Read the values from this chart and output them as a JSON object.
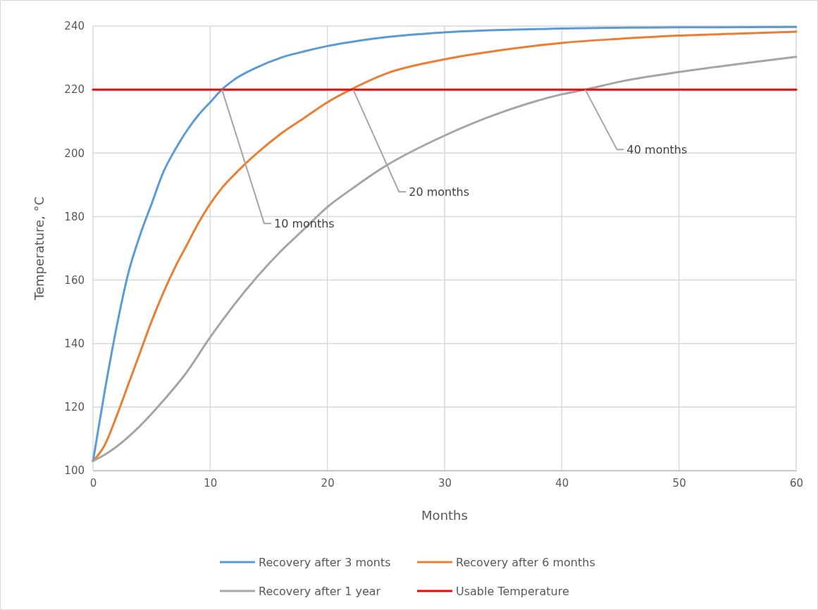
{
  "chart_data": {
    "type": "line",
    "xlabel": "Months",
    "ylabel": "Temperature, °C",
    "xlim": [
      0,
      60
    ],
    "xticks": [
      0,
      10,
      20,
      30,
      40,
      50,
      60
    ],
    "ylim": [
      100,
      240
    ],
    "yticks": [
      100,
      120,
      140,
      160,
      180,
      200,
      220,
      240
    ],
    "grid": true,
    "legend": "bottom",
    "line_style": "solid",
    "marker": "none",
    "series": [
      {
        "name": "Recovery after 3 monts",
        "color": "#5b9bd5",
        "x": [
          0,
          1,
          2,
          3,
          4,
          5,
          6,
          7,
          8,
          9,
          10,
          11,
          12,
          14,
          16,
          18,
          20,
          25,
          30,
          40,
          50,
          60
        ],
        "values": [
          103,
          125,
          145,
          162,
          174,
          184,
          194,
          201,
          207,
          212,
          216,
          220,
          223,
          227,
          230,
          232,
          233.7,
          236.5,
          238,
          239.2,
          239.6,
          239.7
        ]
      },
      {
        "name": "Recovery after 6 months",
        "color": "#ed7d31",
        "x": [
          0,
          1,
          2,
          3,
          4,
          5,
          6,
          7,
          8,
          9,
          10,
          11,
          12,
          14,
          16,
          18,
          20,
          22,
          25,
          30,
          35,
          40,
          45,
          50,
          55,
          60
        ],
        "values": [
          103,
          108,
          117,
          127,
          137,
          147,
          156,
          164,
          171,
          178,
          184,
          189,
          193,
          200,
          206,
          211,
          216,
          220,
          225,
          229.5,
          232.5,
          234.7,
          236,
          237,
          237.6,
          238.2
        ]
      },
      {
        "name": "Recovery after 1 year",
        "color": "#a5a5a5",
        "x": [
          0,
          1,
          2,
          4,
          6,
          8,
          10,
          12,
          14,
          16,
          18,
          20,
          22,
          25,
          30,
          35,
          40,
          42,
          45,
          50,
          55,
          60
        ],
        "values": [
          103,
          105,
          107.5,
          114,
          122,
          131,
          142,
          152,
          161,
          169,
          176,
          183,
          188.5,
          196,
          205.5,
          213,
          218.5,
          220,
          222.5,
          225.5,
          228,
          230.3
        ]
      },
      {
        "name": "Usable Temperature",
        "color": "#ff0000",
        "x": [
          0,
          60
        ],
        "values": [
          220,
          220
        ]
      }
    ],
    "annotations": [
      {
        "text": "10 months",
        "x": 11,
        "y": 220
      },
      {
        "text": "20 months",
        "x": 22.2,
        "y": 220
      },
      {
        "text": "40 months",
        "x": 42,
        "y": 220
      }
    ]
  }
}
